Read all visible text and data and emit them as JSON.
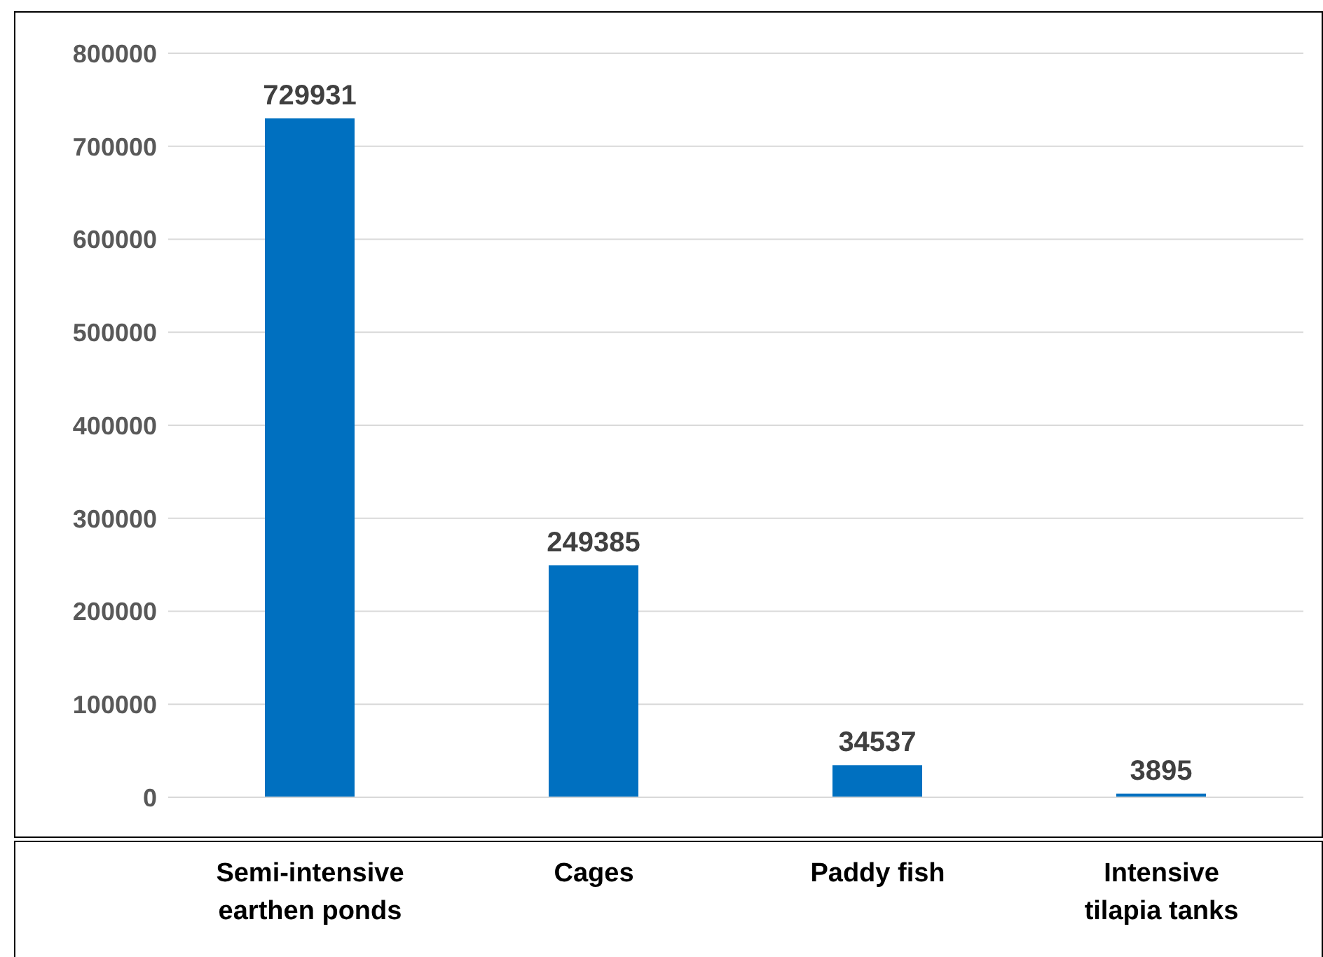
{
  "chart_data": {
    "type": "bar",
    "categories": [
      "Semi-intensive earthen ponds",
      "Cages",
      "Paddy fish",
      "Intensive tilapia tanks"
    ],
    "values": [
      729931,
      249385,
      34537,
      3895
    ],
    "color": "#0070c0",
    "ylim": [
      0,
      800000
    ],
    "yticks": [
      0,
      100000,
      200000,
      300000,
      400000,
      500000,
      600000,
      700000,
      800000
    ],
    "grid": "y",
    "data_labels": true
  }
}
